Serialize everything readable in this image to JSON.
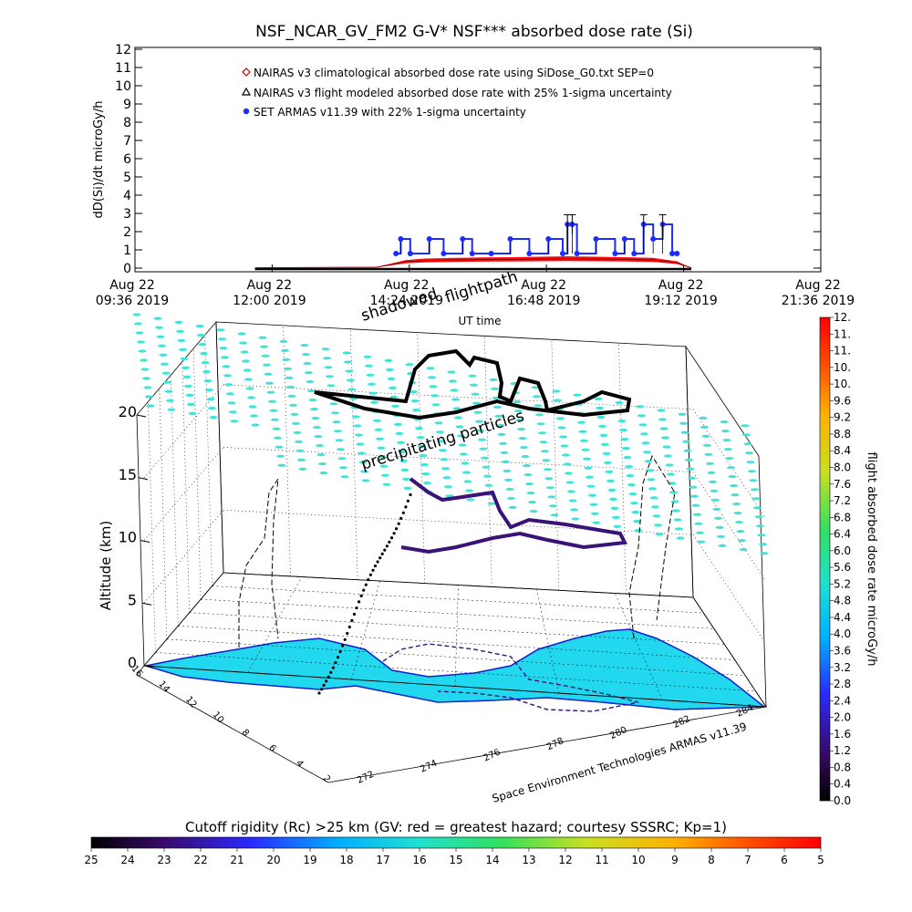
{
  "title": "NSF_NCAR_GV_FM2 G-V* NSF*** absorbed dose rate (Si)",
  "top_chart": {
    "ylabel": "dD(Si)/dt microGy/h",
    "xlabel": "UT time",
    "x_ticks": [
      {
        "date": "Aug 22",
        "time": "09:36 2019"
      },
      {
        "date": "Aug 22",
        "time": "12:00 2019"
      },
      {
        "date": "Aug 22",
        "time": "14:24 2019"
      },
      {
        "date": "Aug 22",
        "time": "16:48 2019"
      },
      {
        "date": "Aug 22",
        "time": "19:12 2019"
      },
      {
        "date": "Aug 22",
        "time": "21:36 2019"
      }
    ],
    "y_ticks": [
      "0",
      "1",
      "2",
      "3",
      "4",
      "5",
      "6",
      "7",
      "8",
      "9",
      "10",
      "11",
      "12"
    ],
    "legend": [
      "NAIRAS v3 climatological absorbed dose rate using SiDose_G0.txt SEP=0",
      "NAIRAS v3 flight modeled absorbed dose rate with 25% 1-sigma uncertainty",
      "SET ARMAS v11.39 with 22% 1-sigma uncertainty"
    ],
    "colors": {
      "climatological": "#c00000",
      "modeled": "#000000",
      "armas": "#1c2bff",
      "model_fill": "#ff1010"
    }
  },
  "chart_data": {
    "type": "line",
    "title": "NSF_NCAR_GV_FM2 G-V* NSF*** absorbed dose rate (Si)",
    "xlabel": "UT time",
    "ylabel": "dD(Si)/dt microGy/h",
    "ylim": [
      0,
      12
    ],
    "xlim": [
      "09:36",
      "21:36"
    ],
    "legend_position": "top-left",
    "grid": false,
    "series": [
      {
        "name": "NAIRAS v3 flight modeled absorbed dose rate with 25% 1-sigma uncertainty",
        "x": [
          "11:42",
          "13:50",
          "14:05",
          "14:20",
          "14:40",
          "15:10",
          "15:40",
          "16:10",
          "16:40",
          "17:10",
          "17:40",
          "18:10",
          "18:40",
          "19:05",
          "19:15",
          "19:20"
        ],
        "y": [
          0.02,
          0.05,
          0.2,
          0.35,
          0.42,
          0.45,
          0.47,
          0.48,
          0.5,
          0.52,
          0.5,
          0.48,
          0.45,
          0.3,
          0.1,
          0.02
        ]
      },
      {
        "name": "SET ARMAS v11.39 with 22% 1-sigma uncertainty",
        "x": [
          "14:10",
          "14:15",
          "14:25",
          "14:45",
          "15:00",
          "15:20",
          "15:30",
          "15:50",
          "16:10",
          "16:30",
          "16:50",
          "17:05",
          "17:10",
          "17:15",
          "17:20",
          "17:40",
          "18:00",
          "18:10",
          "18:20",
          "18:30",
          "18:40",
          "18:50",
          "19:00",
          "19:05"
        ],
        "y": [
          0.8,
          1.6,
          0.8,
          1.6,
          0.8,
          1.6,
          0.8,
          0.8,
          1.6,
          0.8,
          1.6,
          0.8,
          2.4,
          2.4,
          0.8,
          1.6,
          0.8,
          1.6,
          0.8,
          2.4,
          1.6,
          2.4,
          0.8,
          0.8
        ]
      }
    ]
  },
  "scene": {
    "zlabel": "Altitude (km)",
    "z_ticks": [
      "0",
      "5",
      "10",
      "15",
      "20"
    ],
    "lon_ticks": [
      "272",
      "274",
      "276",
      "278",
      "280",
      "282",
      "284"
    ],
    "lat_ticks": [
      "16",
      "14",
      "12",
      "10",
      "8",
      "6",
      "4",
      "2"
    ],
    "labels": {
      "shadowed": "shadowed",
      "flightpath": "flightpath",
      "precipitating": "precipitating particles",
      "credit": "Space Environment Technologies ARMAS v11.39"
    },
    "colors": {
      "land": "#22d8ee",
      "coast": "#1020d0",
      "particles": "#3fe4d8",
      "track_dark": "#000000",
      "track_purple": "#3a1278"
    }
  },
  "dose_colorbar": {
    "label": "flight absorbed dose rate microGy/h",
    "ticks": [
      "0.0",
      "0.4",
      "0.8",
      "1.2",
      "1.6",
      "2.0",
      "2.4",
      "2.8",
      "3.2",
      "3.6",
      "4.0",
      "4.4",
      "4.8",
      "5.2",
      "5.6",
      "6.0",
      "6.4",
      "6.8",
      "7.2",
      "7.6",
      "8.0",
      "8.4",
      "8.8",
      "9.2",
      "9.6",
      "10.",
      "10.",
      "11.",
      "11.",
      "12."
    ],
    "colors": [
      "#000000",
      "#3a0a6a",
      "#2a2aff",
      "#00b0ff",
      "#20e0d0",
      "#30e060",
      "#c8e020",
      "#ffb000",
      "#ff5000",
      "#ff0000"
    ]
  },
  "rc_colorbar": {
    "label": "Cutoff rigidity (Rc) >25 km (GV: red = greatest hazard; courtesy SSSRC; Kp=1)",
    "ticks": [
      "25",
      "24",
      "23",
      "22",
      "21",
      "20",
      "19",
      "18",
      "17",
      "16",
      "15",
      "14",
      "13",
      "12",
      "11",
      "10",
      "9",
      "8",
      "7",
      "6",
      "5"
    ],
    "colors": [
      "#000000",
      "#3a0a6a",
      "#2a2aff",
      "#00b0ff",
      "#20e0d0",
      "#30e060",
      "#c8e020",
      "#ffb000",
      "#ff5000",
      "#ff0000"
    ]
  }
}
